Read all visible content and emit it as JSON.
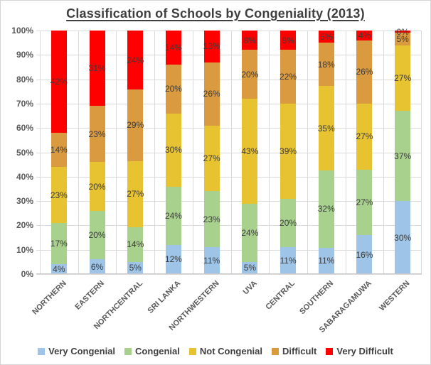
{
  "title": "Classification of Schools by Congeniality (2013)",
  "colors": {
    "background": "#FFFFFF",
    "grid": "#DADADA",
    "axis_text": "#595959",
    "label_text": "#3B3B3B",
    "title_text": "#3F3F3F",
    "very_congenial": "#9EC4E7",
    "congenial": "#A9D18E",
    "not_congenial": "#E7C231",
    "difficult": "#DA9A3F",
    "very_difficult": "#FE0000"
  },
  "chart_data": {
    "type": "bar",
    "subtype": "stacked-100-percent",
    "title": "Classification of Schools by Congeniality (2013)",
    "categories": [
      "NORTHERN",
      "EASTERN",
      "NORTHCENTRAL",
      "SRI LANKA",
      "NORTHWESTERN",
      "UVA",
      "CENTRAL",
      "SOUTHERN",
      "SABARAGAMUWA",
      "WESTERN"
    ],
    "series": [
      {
        "name": "Very Congenial",
        "color": "#9EC4E7",
        "values": [
          4,
          6,
          5,
          12,
          11,
          5,
          11,
          11,
          16,
          30
        ]
      },
      {
        "name": "Congenial",
        "color": "#A9D18E",
        "values": [
          17,
          20,
          14,
          24,
          23,
          24,
          20,
          32,
          27,
          37
        ]
      },
      {
        "name": "Not Congenial",
        "color": "#E7C231",
        "values": [
          23,
          20,
          27,
          30,
          27,
          43,
          39,
          35,
          27,
          27
        ]
      },
      {
        "name": "Difficult",
        "color": "#DA9A3F",
        "values": [
          14,
          23,
          29,
          20,
          26,
          20,
          22,
          18,
          26,
          5
        ]
      },
      {
        "name": "Very Difficult",
        "color": "#FE0000",
        "values": [
          42,
          31,
          24,
          14,
          13,
          8,
          8,
          5,
          4,
          0
        ],
        "render_values": [
          42,
          31,
          24,
          14,
          13,
          8,
          8,
          5,
          4,
          1
        ]
      }
    ],
    "data_labels": "all segments, value + %",
    "y_ticks": [
      "100%",
      "90%",
      "80%",
      "70%",
      "60%",
      "50%",
      "40%",
      "30%",
      "20%",
      "10%",
      "0%"
    ],
    "ylim": [
      0,
      100
    ],
    "grid": "horizontal lines every 10%, faint vertical lines at category boundaries",
    "legend_position": "bottom",
    "legend_items": [
      "Very Congenial",
      "Congenial",
      "Not Congenial",
      "Difficult",
      "Very Difficult"
    ]
  }
}
